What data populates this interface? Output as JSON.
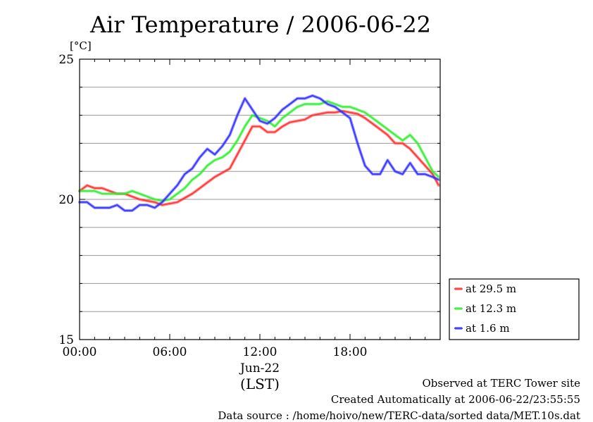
{
  "chart_data": {
    "type": "line",
    "title": "Air Temperature / 2006-06-22",
    "ylabel": "[°C]",
    "xlabel": "(LST)",
    "date_label": "Jun-22",
    "x_ticks": [
      "00:00",
      "06:00",
      "12:00",
      "18:00"
    ],
    "y_ticks": [
      "15",
      "20",
      "25"
    ],
    "xlim": [
      0,
      24
    ],
    "ylim": [
      15,
      25
    ],
    "grid": true,
    "legend_position": "right-bottom",
    "series": [
      {
        "name": "at 29.5 m",
        "color": "#ff3333",
        "x": [
          0,
          0.5,
          1,
          1.5,
          2,
          2.5,
          3,
          3.5,
          4,
          4.5,
          5,
          5.5,
          6,
          6.5,
          7,
          7.5,
          8,
          8.5,
          9,
          9.5,
          10,
          10.5,
          11,
          11.5,
          12,
          12.5,
          13,
          13.5,
          14,
          14.5,
          15,
          15.5,
          16,
          16.5,
          17,
          17.5,
          18,
          18.5,
          19,
          19.5,
          20,
          20.5,
          21,
          21.5,
          22,
          22.5,
          23,
          23.5,
          23.9
        ],
        "y": [
          20.3,
          20.5,
          20.4,
          20.4,
          20.3,
          20.2,
          20.2,
          20.1,
          20.0,
          19.95,
          19.9,
          19.8,
          19.85,
          19.9,
          20.05,
          20.2,
          20.4,
          20.6,
          20.8,
          20.95,
          21.1,
          21.6,
          22.1,
          22.6,
          22.6,
          22.4,
          22.4,
          22.6,
          22.75,
          22.8,
          22.85,
          23.0,
          23.05,
          23.1,
          23.1,
          23.15,
          23.1,
          23.05,
          22.9,
          22.7,
          22.5,
          22.3,
          22.0,
          22.0,
          21.8,
          21.5,
          21.2,
          20.9,
          20.5
        ]
      },
      {
        "name": "at 12.3 m",
        "color": "#33ee33",
        "x": [
          0,
          0.5,
          1,
          1.5,
          2,
          2.5,
          3,
          3.5,
          4,
          4.5,
          5,
          5.5,
          6,
          6.5,
          7,
          7.5,
          8,
          8.5,
          9,
          9.5,
          10,
          10.5,
          11,
          11.5,
          12,
          12.5,
          13,
          13.5,
          14,
          14.5,
          15,
          15.5,
          16,
          16.5,
          17,
          17.5,
          18,
          18.5,
          19,
          19.5,
          20,
          20.5,
          21,
          21.5,
          22,
          22.5,
          23,
          23.5,
          23.9
        ],
        "y": [
          20.3,
          20.3,
          20.3,
          20.2,
          20.2,
          20.2,
          20.2,
          20.3,
          20.2,
          20.1,
          20.0,
          19.95,
          20.0,
          20.2,
          20.4,
          20.7,
          20.9,
          21.2,
          21.4,
          21.5,
          21.7,
          22.1,
          22.6,
          23.0,
          22.9,
          22.8,
          22.6,
          22.9,
          23.1,
          23.3,
          23.4,
          23.4,
          23.4,
          23.5,
          23.4,
          23.3,
          23.3,
          23.2,
          23.1,
          22.9,
          22.7,
          22.5,
          22.3,
          22.1,
          22.3,
          22.0,
          21.5,
          21.0,
          20.8
        ]
      },
      {
        "name": "at 1.6 m",
        "color": "#3333ff",
        "x": [
          0,
          0.5,
          1,
          1.5,
          2,
          2.5,
          3,
          3.5,
          4,
          4.5,
          5,
          5.5,
          6,
          6.5,
          7,
          7.5,
          8,
          8.5,
          9,
          9.5,
          10,
          10.5,
          11,
          11.5,
          12,
          12.5,
          13,
          13.5,
          14,
          14.5,
          15,
          15.5,
          16,
          16.5,
          17,
          17.5,
          18,
          18.5,
          19,
          19.5,
          20,
          20.5,
          21,
          21.5,
          22,
          22.5,
          23,
          23.5,
          23.9
        ],
        "y": [
          19.9,
          19.9,
          19.7,
          19.7,
          19.7,
          19.8,
          19.6,
          19.6,
          19.8,
          19.8,
          19.7,
          19.9,
          20.2,
          20.5,
          20.9,
          21.1,
          21.5,
          21.8,
          21.6,
          21.9,
          22.3,
          23.0,
          23.6,
          23.2,
          22.8,
          22.7,
          22.9,
          23.2,
          23.4,
          23.6,
          23.6,
          23.7,
          23.6,
          23.4,
          23.3,
          23.1,
          22.9,
          22.0,
          21.2,
          20.9,
          20.9,
          21.4,
          21.0,
          20.9,
          21.3,
          20.9,
          20.9,
          20.8,
          20.7
        ]
      }
    ]
  },
  "footer": {
    "site": "Observed at TERC Tower site",
    "created": "Created Automatically at 2006-06-22/23:55:55",
    "source": "Data source : /home/hoivo/new/TERC-data/sorted  data/MET.10s.dat"
  }
}
